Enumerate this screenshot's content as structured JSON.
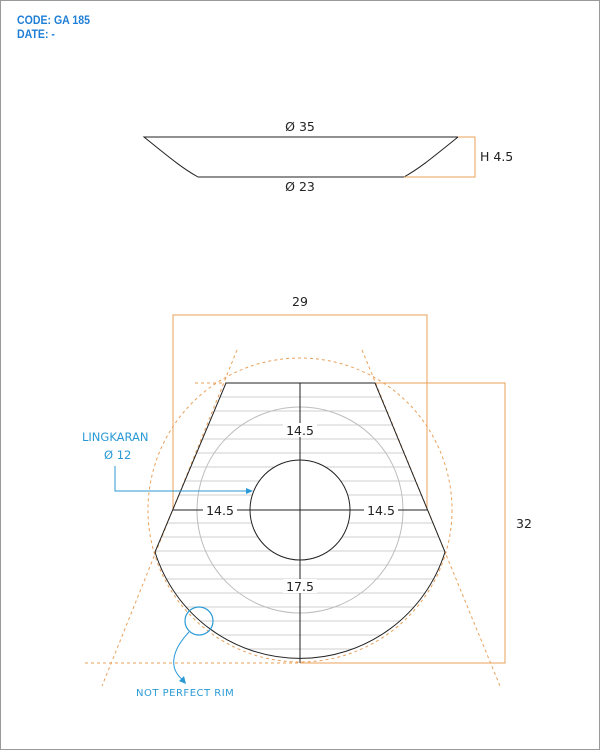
{
  "header": {
    "code": "CODE: GA 185",
    "date": "DATE: -"
  },
  "side_view": {
    "top_diameter": "Ø 35",
    "bottom_diameter": "Ø 23",
    "height": "H 4.5"
  },
  "plan_view": {
    "width_top": "29",
    "height_right": "32",
    "dim_upper": "14.5",
    "dim_left": "14.5",
    "dim_right": "14.5",
    "dim_lower": "17.5"
  },
  "notes": {
    "circle_label": "LINGKARAN",
    "circle_diameter": "Ø 12",
    "rim_note": "NOT PERFECT RIM"
  },
  "colors": {
    "outline": "#222222",
    "dimension_orange": "#e8a15a",
    "annotation_blue": "#2a9ad6",
    "hatch_gray": "#cfcfcf"
  }
}
